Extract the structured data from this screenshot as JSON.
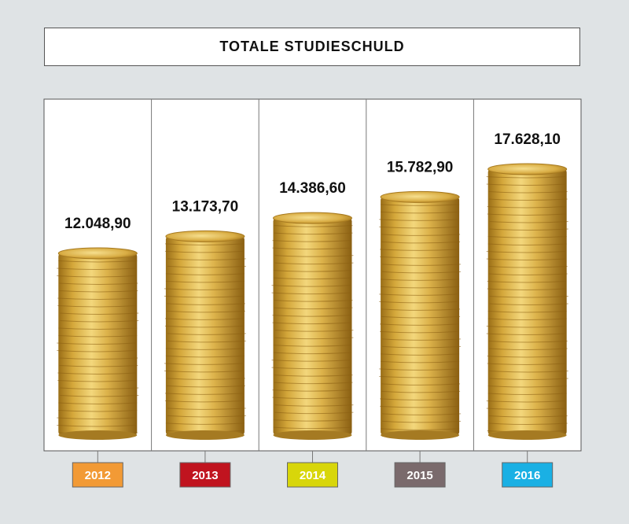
{
  "title": "TOTALE STUDIESCHULD",
  "chart_data": {
    "type": "bar",
    "title": "TOTALE STUDIESCHULD",
    "categories": [
      "2012",
      "2013",
      "2014",
      "2015",
      "2016"
    ],
    "values": [
      12048.9,
      13173.7,
      14386.6,
      15782.9,
      17628.1
    ],
    "value_labels": [
      "12.048,90",
      "13.173,70",
      "14.386,60",
      "15.782,90",
      "17.628,10"
    ],
    "category_colors": [
      "#f29a35",
      "#c0141f",
      "#d8d60a",
      "#7a6a6c",
      "#1ab0e4"
    ],
    "bar_style": "coin-stack",
    "coin_color": "#d9ac3a",
    "grid": false,
    "legend": "none"
  }
}
